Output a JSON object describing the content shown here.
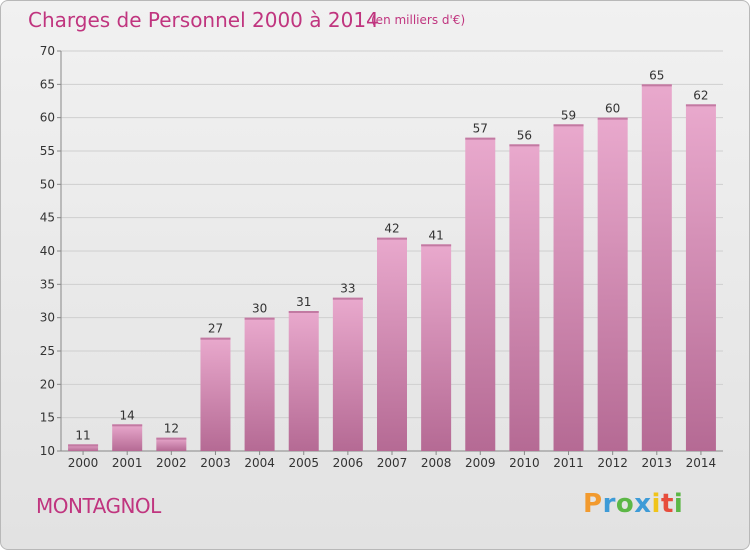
{
  "header": {
    "title": "Charges de Personnel 2000 à 2014",
    "subtitle": "(en milliers d'€)"
  },
  "footer": {
    "commune": "MONTAGNOL",
    "logo_text": "Proxiti"
  },
  "colors": {
    "accent": "#c0357f",
    "bar_top": "#e9a9cd",
    "bar_bottom": "#b56a94"
  },
  "chart_data": {
    "type": "bar",
    "categories": [
      "2000",
      "2001",
      "2002",
      "2003",
      "2004",
      "2005",
      "2006",
      "2007",
      "2008",
      "2009",
      "2010",
      "2011",
      "2012",
      "2013",
      "2014"
    ],
    "values": [
      11,
      14,
      12,
      27,
      30,
      31,
      33,
      42,
      41,
      57,
      56,
      59,
      60,
      65,
      62
    ],
    "ylim": [
      10,
      70
    ],
    "yticks": [
      10,
      15,
      20,
      25,
      30,
      35,
      40,
      45,
      50,
      55,
      60,
      65,
      70
    ],
    "grid": true
  }
}
